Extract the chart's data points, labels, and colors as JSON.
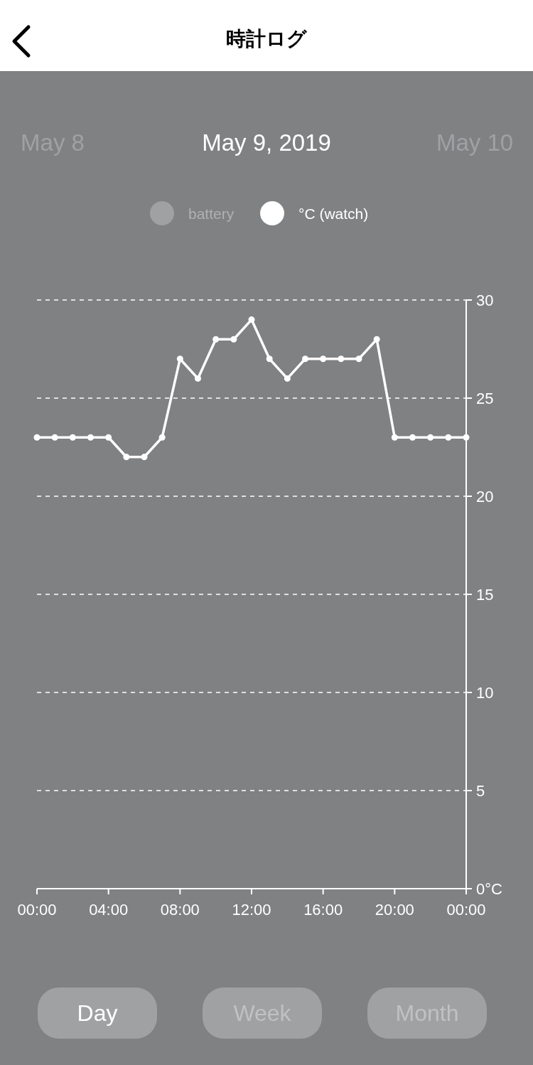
{
  "chart_data": {
    "type": "line",
    "title": "時計ログ",
    "subtitle": "May 9, 2019",
    "annotations": [
      "May 8",
      "May 10",
      "Day",
      "Week",
      "Month"
    ],
    "x": [
      0,
      1,
      2,
      3,
      4,
      5,
      6,
      7,
      8,
      9,
      10,
      11,
      12,
      13,
      14,
      15,
      16,
      17,
      18,
      19,
      20,
      21,
      22,
      23,
      24
    ],
    "series": [
      {
        "name": "battery",
        "color": "#a0a1a3",
        "values": [
          null,
          null,
          null,
          null,
          null,
          null,
          null,
          null,
          null,
          null,
          null,
          null,
          null,
          null,
          null,
          null,
          null,
          null,
          null,
          null,
          null,
          null,
          null,
          null,
          null
        ]
      },
      {
        "name": "°C (watch)",
        "color": "#ffffff",
        "values": [
          23,
          23,
          23,
          23,
          23,
          22,
          22,
          23,
          27,
          26,
          28,
          28,
          29,
          27,
          26,
          27,
          27,
          27,
          27,
          28,
          23,
          23,
          23,
          23,
          23
        ]
      }
    ],
    "xlim": [
      0,
      24
    ],
    "xticks": [
      {
        "value": 0,
        "label": "00:00"
      },
      {
        "value": 4,
        "label": "04:00"
      },
      {
        "value": 8,
        "label": "08:00"
      },
      {
        "value": 12,
        "label": "12:00"
      },
      {
        "value": 16,
        "label": "16:00"
      },
      {
        "value": 20,
        "label": "20:00"
      },
      {
        "value": 24,
        "label": "00:00"
      }
    ],
    "ylim": [
      0,
      30
    ],
    "yticks": [
      {
        "value": 0,
        "label": "0°C"
      },
      5,
      10,
      15,
      20,
      25,
      30
    ],
    "grid": "y",
    "legend": "top",
    "marker": "circle",
    "line_style": "solid"
  }
}
